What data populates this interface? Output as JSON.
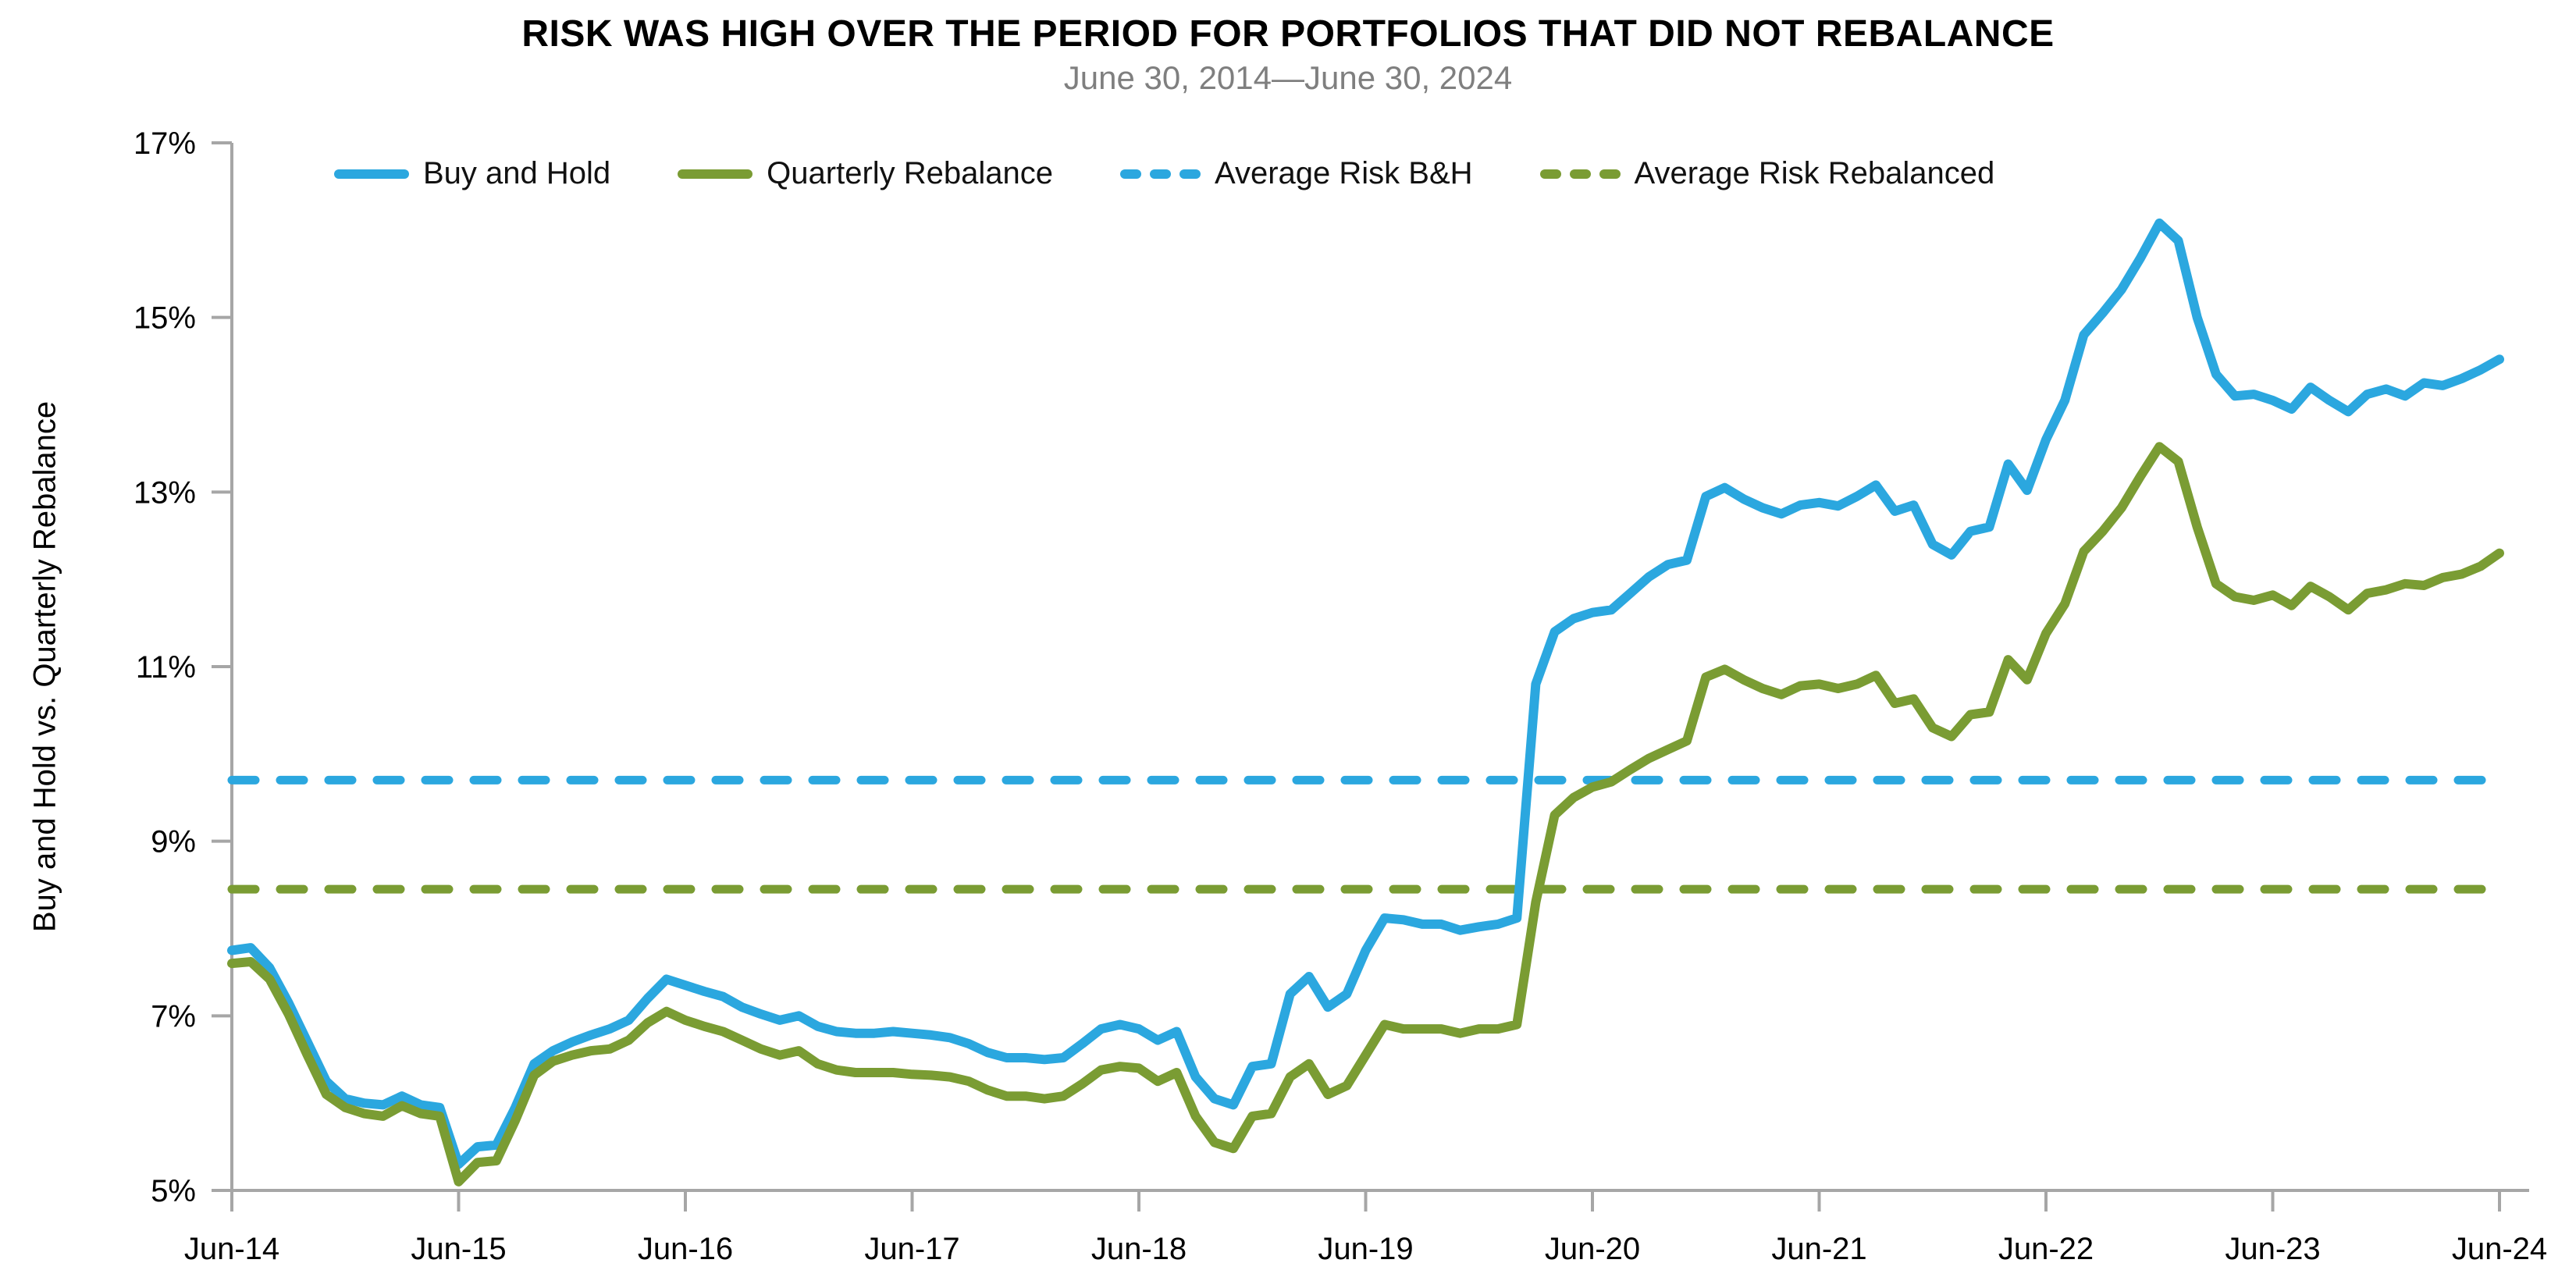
{
  "title": "RISK WAS HIGH OVER THE PERIOD FOR PORTFOLIOS THAT DID NOT REBALANCE",
  "subtitle": "June 30, 2014—June 30, 2024",
  "y_axis_label": "Buy and Hold vs. Quarterly Rebalance",
  "colors": {
    "buy_and_hold_blue": "#2BA7DF",
    "rebalance_green": "#7A9C33",
    "axis_gray": "#A6A6A6",
    "subtitle_gray": "#7F7F7F",
    "title_black": "#000000"
  },
  "legend": [
    {
      "label": "Buy and Hold",
      "style": "solid",
      "color": "#2BA7DF"
    },
    {
      "label": "Quarterly Rebalance",
      "style": "solid",
      "color": "#7A9C33"
    },
    {
      "label": "Average Risk B&H",
      "style": "dashed",
      "color": "#2BA7DF"
    },
    {
      "label": "Average Risk Rebalanced",
      "style": "dashed",
      "color": "#7A9C33"
    }
  ],
  "chart_data": {
    "type": "line",
    "title": "RISK WAS HIGH OVER THE PERIOD FOR PORTFOLIOS THAT DID NOT REBALANCE",
    "subtitle": "June 30, 2014—June 30, 2024",
    "ylabel": "Buy and Hold vs. Quarterly Rebalance",
    "xlabel": "",
    "ylim": [
      5,
      17
    ],
    "y_ticks": [
      5,
      7,
      9,
      11,
      13,
      15,
      17
    ],
    "y_tick_suffix": "%",
    "x_tick_labels": [
      "Jun-14",
      "Jun-15",
      "Jun-16",
      "Jun-17",
      "Jun-18",
      "Jun-19",
      "Jun-20",
      "Jun-21",
      "Jun-22",
      "Jun-23",
      "Jun-24"
    ],
    "x_unit": "month",
    "points_per_series": 121,
    "grid": "off",
    "legend_position": "top",
    "series": [
      {
        "name": "Buy and Hold",
        "style": "solid",
        "color": "#2BA7DF",
        "values": [
          7.75,
          7.78,
          7.55,
          7.15,
          6.7,
          6.25,
          6.05,
          6.0,
          5.98,
          6.08,
          5.98,
          5.95,
          5.3,
          5.5,
          5.52,
          5.95,
          6.45,
          6.6,
          6.7,
          6.78,
          6.85,
          6.95,
          7.2,
          7.42,
          7.35,
          7.28,
          7.22,
          7.1,
          7.02,
          6.95,
          7.0,
          6.88,
          6.82,
          6.8,
          6.8,
          6.82,
          6.8,
          6.78,
          6.75,
          6.68,
          6.58,
          6.52,
          6.52,
          6.5,
          6.52,
          6.68,
          6.85,
          6.9,
          6.85,
          6.72,
          6.82,
          6.3,
          6.05,
          5.98,
          6.42,
          6.45,
          7.25,
          7.45,
          7.1,
          7.25,
          7.75,
          8.12,
          8.1,
          8.05,
          8.05,
          7.98,
          8.02,
          8.05,
          8.12,
          10.8,
          11.4,
          11.55,
          11.62,
          11.65,
          11.84,
          12.03,
          12.17,
          12.22,
          12.95,
          13.05,
          12.92,
          12.82,
          12.75,
          12.85,
          12.88,
          12.84,
          12.95,
          13.08,
          12.78,
          12.85,
          12.4,
          12.28,
          12.55,
          12.6,
          13.32,
          13.02,
          13.6,
          14.05,
          14.8,
          15.05,
          15.32,
          15.68,
          16.08,
          15.88,
          15.0,
          14.35,
          14.1,
          14.12,
          14.05,
          13.95,
          14.2,
          14.05,
          13.92,
          14.12,
          14.18,
          14.1,
          14.25,
          14.22,
          14.3,
          14.4,
          14.52
        ]
      },
      {
        "name": "Quarterly Rebalance",
        "style": "solid",
        "color": "#7A9C33",
        "values": [
          7.6,
          7.62,
          7.42,
          7.02,
          6.55,
          6.1,
          5.95,
          5.88,
          5.85,
          5.97,
          5.88,
          5.85,
          5.1,
          5.32,
          5.34,
          5.8,
          6.32,
          6.48,
          6.55,
          6.6,
          6.62,
          6.72,
          6.92,
          7.05,
          6.95,
          6.88,
          6.82,
          6.72,
          6.62,
          6.55,
          6.6,
          6.45,
          6.38,
          6.35,
          6.35,
          6.35,
          6.33,
          6.32,
          6.3,
          6.25,
          6.15,
          6.08,
          6.08,
          6.05,
          6.08,
          6.22,
          6.38,
          6.42,
          6.4,
          6.25,
          6.35,
          5.85,
          5.55,
          5.48,
          5.85,
          5.88,
          6.3,
          6.45,
          6.1,
          6.2,
          6.55,
          6.9,
          6.85,
          6.85,
          6.85,
          6.8,
          6.85,
          6.85,
          6.9,
          8.3,
          9.3,
          9.5,
          9.62,
          9.68,
          9.82,
          9.95,
          10.05,
          10.15,
          10.88,
          10.97,
          10.85,
          10.75,
          10.68,
          10.78,
          10.8,
          10.75,
          10.8,
          10.9,
          10.58,
          10.63,
          10.3,
          10.2,
          10.45,
          10.48,
          11.08,
          10.85,
          11.38,
          11.72,
          12.32,
          12.55,
          12.82,
          13.18,
          13.52,
          13.35,
          12.6,
          11.95,
          11.8,
          11.76,
          11.82,
          11.7,
          11.92,
          11.8,
          11.65,
          11.84,
          11.88,
          11.95,
          11.93,
          12.02,
          12.06,
          12.15,
          12.3
        ]
      }
    ],
    "reference_lines": [
      {
        "name": "Average Risk B&H",
        "value": 9.7,
        "style": "dashed",
        "color": "#2BA7DF"
      },
      {
        "name": "Average Risk Rebalanced",
        "value": 8.45,
        "style": "dashed",
        "color": "#7A9C33"
      }
    ]
  }
}
